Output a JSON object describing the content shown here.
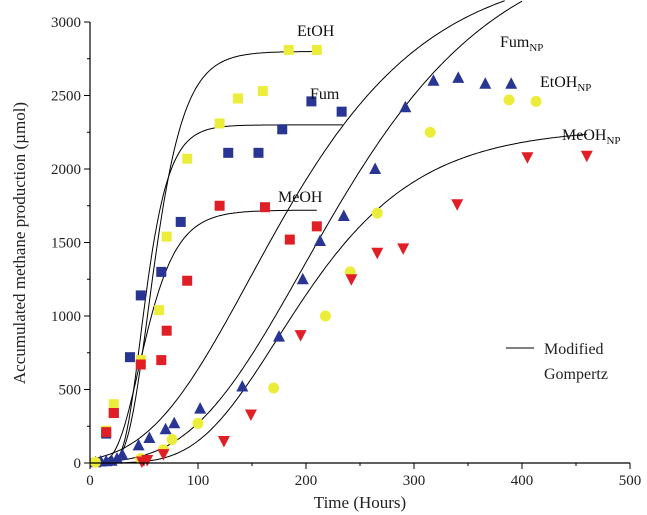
{
  "chart_data": {
    "type": "scatter",
    "xlabel": "Time (Hours)",
    "ylabel": "Accumulated methane production (µmol)",
    "xlim": [
      0,
      500
    ],
    "ylim": [
      0,
      3000
    ],
    "x_ticks": [
      0,
      100,
      200,
      300,
      400,
      500
    ],
    "y_ticks": [
      0,
      500,
      1000,
      1500,
      2000,
      2500,
      3000
    ],
    "x_tick_labels": [
      "0",
      "100",
      "200",
      "300",
      "400",
      "500"
    ],
    "y_tick_labels": [
      "0",
      "500",
      "1000",
      "1500",
      "2000",
      "2500",
      "3000"
    ],
    "grid": false,
    "legend": {
      "position": "right",
      "line_label_1": "Modified",
      "line_label_2": "Gompertz"
    },
    "series": [
      {
        "name": "EtOH",
        "label_main": "EtOH",
        "label_sub": "",
        "marker": "square",
        "color": "#ecec3a",
        "points": [
          [
            15,
            220
          ],
          [
            22,
            400
          ],
          [
            47,
            700
          ],
          [
            64,
            1040
          ],
          [
            71,
            1540
          ],
          [
            90,
            2070
          ],
          [
            120,
            2310
          ],
          [
            137,
            2480
          ],
          [
            160,
            2530
          ],
          [
            184,
            2810
          ],
          [
            210,
            2810
          ]
        ],
        "fit": {
          "A": 2800,
          "mu": 55,
          "lambda": 35,
          "x_end": 210
        }
      },
      {
        "name": "Fum",
        "label_main": "Fum",
        "label_sub": "",
        "marker": "square",
        "color": "#283593",
        "points": [
          [
            15,
            200
          ],
          [
            22,
            340
          ],
          [
            37,
            720
          ],
          [
            47,
            1140
          ],
          [
            66,
            1300
          ],
          [
            84,
            1640
          ],
          [
            128,
            2110
          ],
          [
            156,
            2110
          ],
          [
            178,
            2270
          ],
          [
            205,
            2460
          ],
          [
            233,
            2390
          ]
        ],
        "fit": {
          "A": 2300,
          "mu": 58,
          "lambda": 32,
          "x_end": 235
        }
      },
      {
        "name": "MeOH",
        "label_main": "MeOH",
        "label_sub": "",
        "marker": "square",
        "color": "#e01e25",
        "points": [
          [
            15,
            210
          ],
          [
            22,
            340
          ],
          [
            47,
            670
          ],
          [
            66,
            700
          ],
          [
            71,
            900
          ],
          [
            90,
            1240
          ],
          [
            120,
            1750
          ],
          [
            162,
            1740
          ],
          [
            185,
            1520
          ],
          [
            210,
            1610
          ]
        ],
        "fit": {
          "A": 1720,
          "mu": 32,
          "lambda": 25,
          "x_end": 210
        }
      },
      {
        "name": "FumNP",
        "label_main": "Fum",
        "label_sub": "NP",
        "marker": "triangle-up",
        "color": "#283593",
        "points": [
          [
            5,
            5
          ],
          [
            10,
            10
          ],
          [
            15,
            12
          ],
          [
            20,
            15
          ],
          [
            25,
            30
          ],
          [
            30,
            55
          ],
          [
            45,
            120
          ],
          [
            55,
            170
          ],
          [
            70,
            230
          ],
          [
            78,
            270
          ],
          [
            102,
            370
          ],
          [
            141,
            520
          ],
          [
            175,
            860
          ],
          [
            197,
            1250
          ],
          [
            213,
            1510
          ],
          [
            235,
            1680
          ],
          [
            264,
            2000
          ],
          [
            292,
            2420
          ],
          [
            318,
            2600
          ],
          [
            341,
            2620
          ],
          [
            366,
            2580
          ],
          [
            390,
            2580
          ]
        ],
        "fit": {
          "A": 3400,
          "mu": 13.5,
          "lambda": 55,
          "x_end": 385
        }
      },
      {
        "name": "EtOHNP",
        "label_main": "EtOH",
        "label_sub": "NP",
        "marker": "circle",
        "color": "#ecec3a",
        "points": [
          [
            5,
            5
          ],
          [
            47,
            30
          ],
          [
            68,
            90
          ],
          [
            76,
            160
          ],
          [
            100,
            270
          ],
          [
            170,
            510
          ],
          [
            218,
            1000
          ],
          [
            241,
            1300
          ],
          [
            266,
            1700
          ],
          [
            315,
            2250
          ],
          [
            388,
            2470
          ],
          [
            413,
            2460
          ]
        ],
        "fit": {
          "A": 3600,
          "mu": 13,
          "lambda": 95,
          "x_end": 400
        }
      },
      {
        "name": "MeOHNP",
        "label_main": "MeOH",
        "label_sub": "NP",
        "marker": "triangle-down",
        "color": "#e01e25",
        "points": [
          [
            48,
            10
          ],
          [
            53,
            20
          ],
          [
            68,
            60
          ],
          [
            124,
            150
          ],
          [
            149,
            330
          ],
          [
            195,
            870
          ],
          [
            242,
            1250
          ],
          [
            266,
            1430
          ],
          [
            290,
            1460
          ],
          [
            340,
            1760
          ],
          [
            405,
            2080
          ],
          [
            460,
            2090
          ]
        ],
        "fit": {
          "A": 2280,
          "mu": 11.5,
          "lambda": 100,
          "x_end": 460
        }
      }
    ]
  }
}
